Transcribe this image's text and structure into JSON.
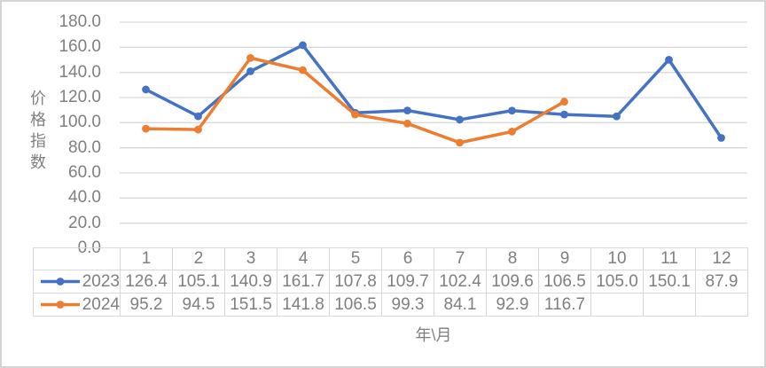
{
  "chart": {
    "y_axis_title": "价格指数",
    "x_axis_title": "年\\月",
    "y_tick_labels": [
      "0.0",
      "20.0",
      "40.0",
      "60.0",
      "80.0",
      "100.0",
      "120.0",
      "140.0",
      "160.0",
      "180.0"
    ]
  },
  "chart_data": {
    "type": "line",
    "title": "",
    "xlabel": "年\\月",
    "ylabel": "价格指数",
    "categories": [
      "1",
      "2",
      "3",
      "4",
      "5",
      "6",
      "7",
      "8",
      "9",
      "10",
      "11",
      "12"
    ],
    "series": [
      {
        "name": "2023",
        "color": "#4472C4",
        "values": [
          126.4,
          105.1,
          140.9,
          161.7,
          107.8,
          109.7,
          102.4,
          109.6,
          106.5,
          105.0,
          150.1,
          87.9
        ]
      },
      {
        "name": "2024",
        "color": "#ED7D31",
        "values": [
          95.2,
          94.5,
          151.5,
          141.8,
          106.5,
          99.3,
          84.1,
          92.9,
          116.7
        ]
      }
    ],
    "ylim": [
      0,
      180
    ],
    "ytick_step": 20,
    "grid": true,
    "legend_position": "table-left",
    "marker": "circle"
  },
  "style": {
    "gridline_color": "#D9D9D9",
    "table_border_color": "#D9D9D9",
    "text_color": "#7F7F7F",
    "outer_border_color": "#D4D4D4",
    "background": "#FFFFFF"
  }
}
